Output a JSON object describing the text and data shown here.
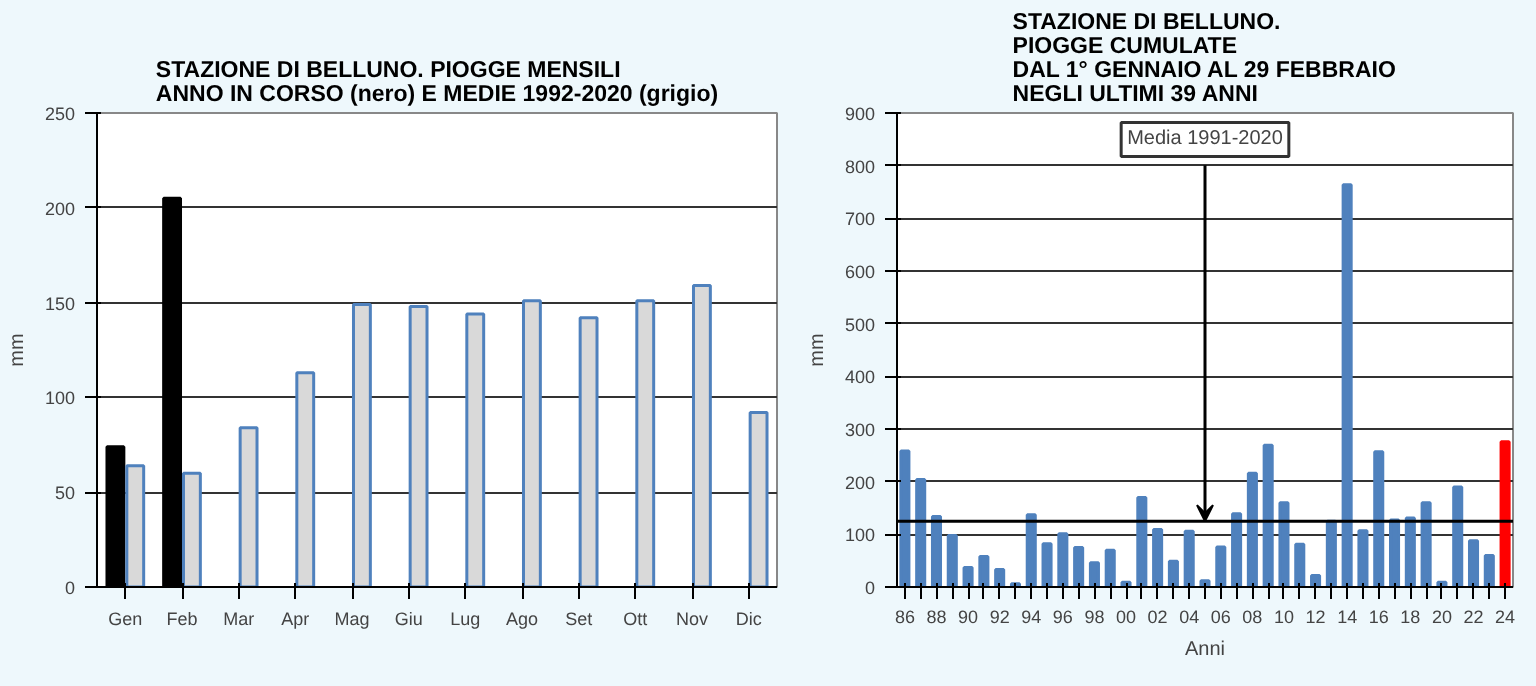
{
  "chart_data": [
    {
      "type": "bar",
      "title": "STAZIONE DI BELLUNO. PIOGGE MENSILI\nANNO IN CORSO (nero) E MEDIE 1992-2020 (grigio)",
      "ylabel": "mm",
      "categories": [
        "Gen",
        "Feb",
        "Mar",
        "Apr",
        "Mag",
        "Giu",
        "Lug",
        "Ago",
        "Set",
        "Ott",
        "Nov",
        "Dic"
      ],
      "series": [
        {
          "color": "#000000",
          "values": [
            74,
            205,
            null,
            null,
            null,
            null,
            null,
            null,
            null,
            null,
            null,
            null
          ]
        },
        {
          "color": "#d9d9d9",
          "values": [
            64,
            60,
            84,
            113,
            149,
            148,
            144,
            151,
            142,
            151,
            159,
            92
          ]
        }
      ],
      "ylim": [
        0,
        250
      ],
      "yticks": [
        0,
        50,
        100,
        150,
        200,
        250
      ],
      "grid": "y"
    },
    {
      "type": "bar",
      "title": "STAZIONE DI BELLUNO.\nPIOGGE CUMULATE\nDAL 1° GENNAIO AL 29 FEBBRAIO\nNEGLI ULTIMI 39 ANNI",
      "xlabel": "Anni",
      "ylabel": "mm",
      "categories": [
        "86",
        null,
        "88",
        null,
        "90",
        null,
        "92",
        null,
        "94",
        null,
        "96",
        null,
        "98",
        null,
        "00",
        null,
        "02",
        null,
        "04",
        null,
        "06",
        null,
        "08",
        null,
        "10",
        null,
        "12",
        null,
        "14",
        null,
        "16",
        null,
        "18",
        null,
        "20",
        null,
        "22",
        null,
        "24"
      ],
      "values": [
        258,
        204,
        134,
        98,
        37,
        58,
        33,
        6,
        137,
        82,
        101,
        75,
        46,
        70,
        9,
        170,
        109,
        49,
        106,
        12,
        76,
        139,
        216,
        269,
        160,
        81,
        22,
        125,
        764,
        107,
        257,
        127,
        131,
        160,
        9,
        190,
        88,
        60,
        276
      ],
      "colors": [
        "#4f81bd",
        "#4f81bd",
        "#4f81bd",
        "#4f81bd",
        "#4f81bd",
        "#4f81bd",
        "#4f81bd",
        "#4f81bd",
        "#4f81bd",
        "#4f81bd",
        "#4f81bd",
        "#4f81bd",
        "#4f81bd",
        "#4f81bd",
        "#4f81bd",
        "#4f81bd",
        "#4f81bd",
        "#4f81bd",
        "#4f81bd",
        "#4f81bd",
        "#4f81bd",
        "#4f81bd",
        "#4f81bd",
        "#4f81bd",
        "#4f81bd",
        "#4f81bd",
        "#4f81bd",
        "#4f81bd",
        "#4f81bd",
        "#4f81bd",
        "#4f81bd",
        "#4f81bd",
        "#4f81bd",
        "#4f81bd",
        "#4f81bd",
        "#4f81bd",
        "#4f81bd",
        "#4f81bd",
        "#ff0000"
      ],
      "ref_lines": [
        {
          "axis": "y",
          "value": 125,
          "label": "Media 1991-2020"
        }
      ],
      "ylim": [
        0,
        900
      ],
      "yticks": [
        0,
        100,
        200,
        300,
        400,
        500,
        600,
        700,
        800,
        900
      ],
      "grid": "y"
    }
  ]
}
